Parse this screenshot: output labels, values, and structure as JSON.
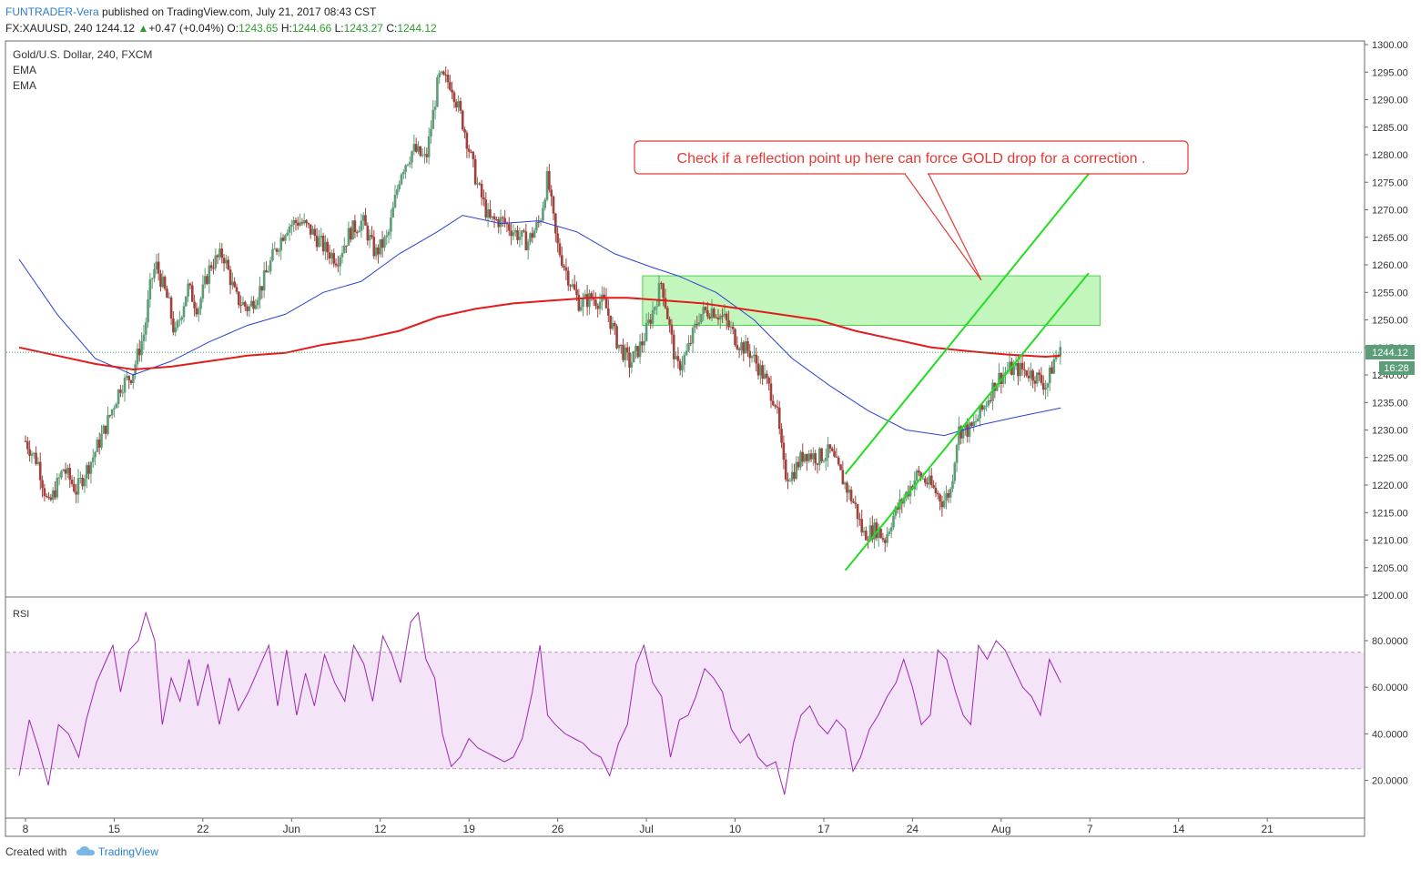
{
  "header": {
    "author": "FUNTRADER-Vera",
    "published": "published on TradingView.com, July 21, 2017 08:43 CST",
    "symbol": "FX:XAUUSD, 240",
    "last": "1244.12",
    "change": "+0.47 (+0.04%)",
    "o_label": "O:",
    "o": "1243.65",
    "h_label": "H:",
    "h": "1244.66",
    "l_label": "L:",
    "l": "1243.27",
    "c_label": "C:",
    "c": "1244.12"
  },
  "legend": {
    "instrument": "Gold/U.S. Dollar, 240, FXCM",
    "ema1": "EMA",
    "ema2": "EMA"
  },
  "rsi_label": "RSI",
  "annotation": "Check if a reflection point up here can force GOLD drop for a correction .",
  "price_badge": "1244.12",
  "time_badge": "16:28",
  "footer": {
    "created": "Created with",
    "brand": "TradingView"
  },
  "colors": {
    "candle_up": "#5e9c76",
    "candle_down": "#a0413c",
    "ema_fast": "#2a3fd6",
    "ema_slow": "#e31b1b",
    "rsi": "#9c27b0",
    "rsi_band": "#f3e5f7",
    "channel": "#22dd22",
    "zone": "#b8f5b0",
    "callout_border": "#e53935",
    "callout_text": "#e53935",
    "badge_bg": "#5b9e78"
  },
  "chart_data": {
    "type": "candlestick",
    "x_ticks": [
      "8",
      "15",
      "22",
      "Jun",
      "12",
      "19",
      "26",
      "Jul",
      "10",
      "17",
      "24",
      "Aug",
      "7",
      "14",
      "21"
    ],
    "y_ticks": [
      "1200.00",
      "1205.00",
      "1210.00",
      "1215.00",
      "1220.00",
      "1225.00",
      "1230.00",
      "1235.00",
      "1240.00",
      "1245.00",
      "1250.00",
      "1255.00",
      "1260.00",
      "1265.00",
      "1270.00",
      "1275.00",
      "1280.00",
      "1285.00",
      "1290.00",
      "1295.00",
      "1300.00"
    ],
    "ylim": [
      1200,
      1300
    ],
    "last_price": 1244.12,
    "price_path": [
      [
        8.0,
        1228
      ],
      [
        9.0,
        1224
      ],
      [
        9.8,
        1216
      ],
      [
        11.0,
        1223
      ],
      [
        12.0,
        1219
      ],
      [
        13.3,
        1225
      ],
      [
        14.4,
        1231
      ],
      [
        15.5,
        1238
      ],
      [
        16.4,
        1240
      ],
      [
        17.4,
        1248
      ],
      [
        17.9,
        1257
      ],
      [
        18.3,
        1260
      ],
      [
        19.3,
        1253
      ],
      [
        19.8,
        1247
      ],
      [
        20.8,
        1256
      ],
      [
        21.6,
        1252
      ],
      [
        22.6,
        1260
      ],
      [
        23.6,
        1262
      ],
      [
        24.6,
        1254
      ],
      [
        25.6,
        1252
      ],
      [
        26.6,
        1256
      ],
      [
        27.6,
        1262
      ],
      [
        28.6,
        1267
      ],
      [
        29.6,
        1268
      ],
      [
        30.6,
        1266
      ],
      [
        31.6,
        1263
      ],
      [
        32.6,
        1261
      ],
      [
        33.6,
        1266
      ],
      [
        34.6,
        1268
      ],
      [
        35.6,
        1262
      ],
      [
        36.6,
        1265
      ],
      [
        37.6,
        1277
      ],
      [
        38.6,
        1281
      ],
      [
        39.6,
        1279
      ],
      [
        40.6,
        1294
      ],
      [
        41.6,
        1293
      ],
      [
        42.6,
        1285
      ],
      [
        43.6,
        1275
      ],
      [
        44.6,
        1268
      ],
      [
        45.6,
        1268
      ],
      [
        46.6,
        1266
      ],
      [
        47.6,
        1264
      ],
      [
        48.6,
        1268
      ],
      [
        49.2,
        1276
      ],
      [
        49.9,
        1264
      ],
      [
        50.8,
        1258
      ],
      [
        51.7,
        1253
      ],
      [
        52.7,
        1254
      ],
      [
        53.7,
        1253
      ],
      [
        54.7,
        1246
      ],
      [
        55.7,
        1242
      ],
      [
        56.7,
        1246
      ],
      [
        57.7,
        1253
      ],
      [
        58.2,
        1257
      ],
      [
        58.8,
        1249
      ],
      [
        59.4,
        1241
      ],
      [
        60.2,
        1244
      ],
      [
        61.2,
        1251
      ],
      [
        62.2,
        1252
      ],
      [
        63.2,
        1250
      ],
      [
        64.2,
        1246
      ],
      [
        65.2,
        1244
      ],
      [
        66.2,
        1240
      ],
      [
        67.2,
        1235
      ],
      [
        67.9,
        1222
      ],
      [
        68.5,
        1222
      ],
      [
        69.5,
        1226
      ],
      [
        70.5,
        1225
      ],
      [
        71.5,
        1226
      ],
      [
        72.5,
        1221
      ],
      [
        73.5,
        1216
      ],
      [
        74.1,
        1211
      ],
      [
        75.2,
        1212
      ],
      [
        75.8,
        1210
      ],
      [
        76.4,
        1214
      ],
      [
        77.4,
        1218
      ],
      [
        78.4,
        1222
      ],
      [
        79.4,
        1220
      ],
      [
        80.4,
        1217
      ],
      [
        81.0,
        1219
      ],
      [
        81.6,
        1230
      ],
      [
        82.6,
        1230
      ],
      [
        83.6,
        1234
      ],
      [
        84.6,
        1239
      ],
      [
        85.6,
        1241
      ],
      [
        86.6,
        1241
      ],
      [
        87.6,
        1240
      ],
      [
        88.6,
        1238
      ],
      [
        89.2,
        1243
      ],
      [
        89.7,
        1244.12
      ]
    ],
    "ema_fast_path": [
      [
        7.5,
        1261
      ],
      [
        10.5,
        1251
      ],
      [
        13.5,
        1243
      ],
      [
        16.5,
        1240
      ],
      [
        19.5,
        1242.5
      ],
      [
        22.5,
        1246
      ],
      [
        25.5,
        1249
      ],
      [
        28.5,
        1251
      ],
      [
        31.5,
        1255
      ],
      [
        34.5,
        1257
      ],
      [
        37.5,
        1262
      ],
      [
        40.5,
        1266
      ],
      [
        42.5,
        1269
      ],
      [
        45.5,
        1267.5
      ],
      [
        48.5,
        1268
      ],
      [
        51.5,
        1266
      ],
      [
        54.5,
        1262
      ],
      [
        57.5,
        1259.5
      ],
      [
        59.5,
        1258
      ],
      [
        62.5,
        1255
      ],
      [
        65.5,
        1250
      ],
      [
        68.5,
        1243
      ],
      [
        71.5,
        1238
      ],
      [
        74.5,
        1233.5
      ],
      [
        77.5,
        1230
      ],
      [
        80.5,
        1229
      ],
      [
        83.5,
        1231
      ],
      [
        86.5,
        1232.5
      ],
      [
        89.7,
        1234
      ]
    ],
    "ema_slow_path": [
      [
        7.5,
        1245
      ],
      [
        10.5,
        1243.5
      ],
      [
        13.5,
        1242
      ],
      [
        16.5,
        1241
      ],
      [
        19.5,
        1241.5
      ],
      [
        22.5,
        1242.5
      ],
      [
        25.5,
        1243.5
      ],
      [
        28.5,
        1244
      ],
      [
        31.5,
        1245.5
      ],
      [
        34.5,
        1246.5
      ],
      [
        37.5,
        1248
      ],
      [
        40.5,
        1250.5
      ],
      [
        43.5,
        1252
      ],
      [
        46.5,
        1253
      ],
      [
        49.5,
        1253.5
      ],
      [
        52.5,
        1254
      ],
      [
        55.5,
        1254
      ],
      [
        58.5,
        1253.5
      ],
      [
        61.5,
        1253
      ],
      [
        64.5,
        1252
      ],
      [
        67.5,
        1251
      ],
      [
        70.5,
        1250
      ],
      [
        73.5,
        1248
      ],
      [
        76.5,
        1246.5
      ],
      [
        79.5,
        1245
      ],
      [
        82.5,
        1244.3
      ],
      [
        85.5,
        1243.7
      ],
      [
        88.5,
        1243.3
      ],
      [
        89.7,
        1243.5
      ]
    ],
    "rsi": {
      "ylim": [
        10,
        95
      ],
      "y_ticks": [
        "20.0000",
        "40.0000",
        "60.0000",
        "80.0000"
      ],
      "upper": 75,
      "lower": 25,
      "path": [
        [
          7.5,
          22
        ],
        [
          8.3,
          46
        ],
        [
          9.0,
          34
        ],
        [
          9.8,
          18
        ],
        [
          10.6,
          44
        ],
        [
          11.4,
          40
        ],
        [
          12.2,
          30
        ],
        [
          12.8,
          46
        ],
        [
          13.6,
          62
        ],
        [
          14.4,
          72
        ],
        [
          14.9,
          78
        ],
        [
          15.5,
          58
        ],
        [
          16.2,
          76
        ],
        [
          16.9,
          80
        ],
        [
          17.5,
          92
        ],
        [
          18.2,
          80
        ],
        [
          18.8,
          44
        ],
        [
          19.5,
          64
        ],
        [
          20.2,
          54
        ],
        [
          20.9,
          72
        ],
        [
          21.6,
          52
        ],
        [
          22.4,
          70
        ],
        [
          23.3,
          44
        ],
        [
          24.1,
          64
        ],
        [
          24.8,
          50
        ],
        [
          25.6,
          58
        ],
        [
          26.4,
          68
        ],
        [
          27.2,
          78
        ],
        [
          27.9,
          52
        ],
        [
          28.6,
          76
        ],
        [
          29.4,
          48
        ],
        [
          30.1,
          66
        ],
        [
          30.8,
          52
        ],
        [
          31.6,
          74
        ],
        [
          32.4,
          62
        ],
        [
          33.2,
          54
        ],
        [
          33.9,
          78
        ],
        [
          34.7,
          70
        ],
        [
          35.4,
          54
        ],
        [
          36.2,
          82
        ],
        [
          36.9,
          74
        ],
        [
          37.6,
          62
        ],
        [
          38.4,
          88
        ],
        [
          39.0,
          92
        ],
        [
          39.6,
          72
        ],
        [
          40.3,
          64
        ],
        [
          40.9,
          40
        ],
        [
          41.6,
          26
        ],
        [
          42.3,
          30
        ],
        [
          43.0,
          38
        ],
        [
          43.7,
          34
        ],
        [
          44.4,
          32
        ],
        [
          45.1,
          30
        ],
        [
          45.8,
          28
        ],
        [
          46.5,
          30
        ],
        [
          47.2,
          38
        ],
        [
          48.0,
          58
        ],
        [
          48.6,
          78
        ],
        [
          49.2,
          48
        ],
        [
          49.8,
          44
        ],
        [
          50.6,
          40
        ],
        [
          51.3,
          38
        ],
        [
          52.0,
          36
        ],
        [
          52.7,
          32
        ],
        [
          53.4,
          30
        ],
        [
          54.1,
          22
        ],
        [
          54.8,
          36
        ],
        [
          55.5,
          44
        ],
        [
          56.2,
          70
        ],
        [
          56.8,
          78
        ],
        [
          57.5,
          62
        ],
        [
          58.2,
          56
        ],
        [
          58.9,
          30
        ],
        [
          59.6,
          46
        ],
        [
          60.3,
          48
        ],
        [
          60.9,
          56
        ],
        [
          61.6,
          68
        ],
        [
          62.3,
          64
        ],
        [
          63.0,
          58
        ],
        [
          63.7,
          42
        ],
        [
          64.4,
          36
        ],
        [
          65.1,
          40
        ],
        [
          65.8,
          30
        ],
        [
          66.5,
          26
        ],
        [
          67.2,
          28
        ],
        [
          67.9,
          14
        ],
        [
          68.6,
          36
        ],
        [
          69.2,
          48
        ],
        [
          69.9,
          52
        ],
        [
          70.6,
          44
        ],
        [
          71.3,
          40
        ],
        [
          72.0,
          46
        ],
        [
          72.7,
          42
        ],
        [
          73.3,
          24
        ],
        [
          73.9,
          30
        ],
        [
          74.6,
          42
        ],
        [
          75.3,
          48
        ],
        [
          76.0,
          56
        ],
        [
          76.7,
          62
        ],
        [
          77.3,
          72
        ],
        [
          78.0,
          60
        ],
        [
          78.7,
          44
        ],
        [
          79.4,
          48
        ],
        [
          80.0,
          76
        ],
        [
          80.7,
          72
        ],
        [
          81.4,
          58
        ],
        [
          82.0,
          48
        ],
        [
          82.6,
          44
        ],
        [
          83.2,
          78
        ],
        [
          83.9,
          72
        ],
        [
          84.6,
          80
        ],
        [
          85.3,
          76
        ],
        [
          86.0,
          68
        ],
        [
          86.7,
          60
        ],
        [
          87.4,
          56
        ],
        [
          88.1,
          48
        ],
        [
          88.8,
          72
        ],
        [
          89.7,
          62
        ]
      ]
    },
    "channel_lines": [
      {
        "from": [
          72.7,
          1222
        ],
        "to": [
          91.9,
          1276.5
        ]
      },
      {
        "from": [
          72.7,
          1204.5
        ],
        "to": [
          91.9,
          1258.5
        ]
      }
    ],
    "zone": {
      "x": [
        56.7,
        92.8
      ],
      "y": [
        1249,
        1258
      ]
    }
  }
}
